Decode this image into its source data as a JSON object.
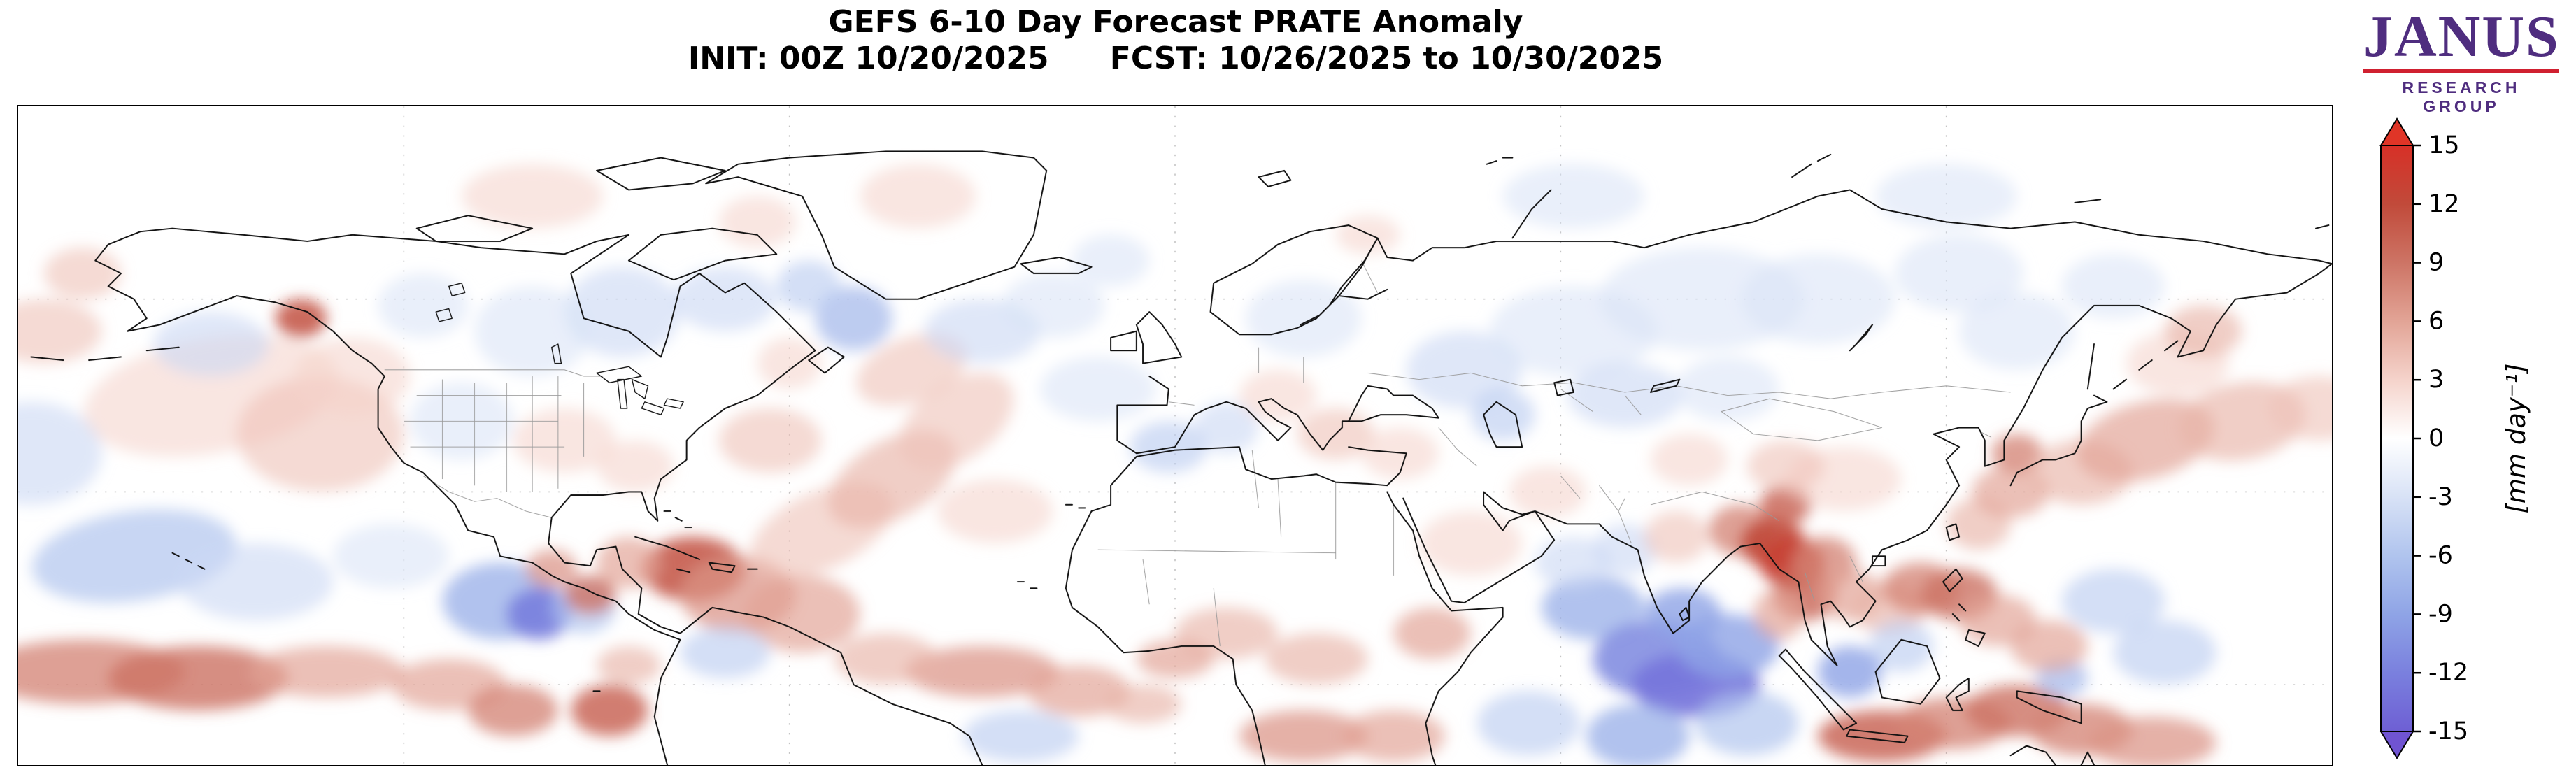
{
  "header": {
    "title_line1": "GEFS 6-10 Day Forecast PRATE Anomaly",
    "init_label": "INIT: 00Z 10/20/2025",
    "fcst_label": "FCST: 10/26/2025 to 10/30/2025"
  },
  "logo": {
    "name": "JANUS",
    "subtitle": "RESEARCH GROUP",
    "text_color": "#4f2d7f",
    "rule_color": "#d02030"
  },
  "colorbar": {
    "vmin": -15,
    "vmax": 15,
    "ticks": [
      15,
      12,
      9,
      6,
      3,
      0,
      -3,
      -6,
      -9,
      -12,
      -15
    ],
    "unit_label": "[mm day⁻¹]",
    "over_color": "#e03527",
    "under_color": "#7054d2",
    "stops": [
      {
        "v": -15,
        "c": "#6e5fd4"
      },
      {
        "v": -12,
        "c": "#7a80de"
      },
      {
        "v": -9,
        "c": "#8fa4e6"
      },
      {
        "v": -6,
        "c": "#b0c4ee"
      },
      {
        "v": -3,
        "c": "#d8e2f6"
      },
      {
        "v": 0,
        "c": "#ffffff"
      },
      {
        "v": 3,
        "c": "#f5d3cb"
      },
      {
        "v": 6,
        "c": "#e2a496"
      },
      {
        "v": 9,
        "c": "#cd7465"
      },
      {
        "v": 12,
        "c": "#c14a3a"
      },
      {
        "v": 15,
        "c": "#d73027"
      }
    ]
  },
  "map": {
    "lon_min": -180,
    "lon_max": 180,
    "lat_max": 90,
    "lat_min": -12.5,
    "grid_lons": [
      -120,
      -60,
      0,
      60,
      120
    ],
    "grid_lats": [
      60,
      30,
      0
    ],
    "blobs": [
      [
        -150,
        45,
        20,
        9,
        3,
        -10
      ],
      [
        -133,
        39,
        13,
        9,
        4
      ],
      [
        -128,
        48,
        9,
        6,
        3
      ],
      [
        -136,
        57,
        4,
        3,
        11
      ],
      [
        -150,
        53,
        9,
        5,
        -4
      ],
      [
        -176,
        55,
        9,
        5,
        4
      ],
      [
        -178,
        36,
        11,
        8,
        -4
      ],
      [
        -162,
        20,
        16,
        7,
        -6,
        -8
      ],
      [
        -143,
        16,
        12,
        6,
        -4
      ],
      [
        -122,
        20,
        9,
        5,
        -3
      ],
      [
        -105,
        13,
        9,
        6,
        -8
      ],
      [
        -99,
        11,
        5,
        4,
        -12
      ],
      [
        -92,
        12,
        5,
        4,
        -6
      ],
      [
        -170,
        2,
        16,
        5,
        8
      ],
      [
        -152,
        1,
        14,
        5,
        9
      ],
      [
        -132,
        2,
        12,
        4,
        6
      ],
      [
        -113,
        0,
        9,
        4,
        6
      ],
      [
        -103,
        -4,
        7,
        4,
        8
      ],
      [
        -88,
        -4,
        6,
        4,
        10
      ],
      [
        -85,
        3,
        5,
        3,
        5
      ],
      [
        -75,
        18,
        8,
        5,
        11
      ],
      [
        -68,
        14,
        9,
        6,
        7
      ],
      [
        -58,
        11,
        9,
        6,
        6
      ],
      [
        -85,
        19,
        5,
        4,
        6
      ],
      [
        -97,
        18,
        4,
        3,
        7
      ],
      [
        -91,
        14,
        4,
        3,
        9
      ],
      [
        -70,
        5,
        7,
        4,
        -5
      ],
      [
        -55,
        24,
        12,
        6,
        4,
        -25
      ],
      [
        -44,
        32,
        11,
        6,
        5,
        -30
      ],
      [
        -34,
        41,
        10,
        6,
        4,
        -35
      ],
      [
        -41,
        49,
        9,
        5,
        4,
        -20
      ],
      [
        -63,
        38,
        8,
        5,
        4
      ],
      [
        -30,
        55,
        9,
        5,
        -4
      ],
      [
        -19,
        59,
        8,
        5,
        -3
      ],
      [
        -50,
        57,
        6,
        5,
        -7
      ],
      [
        -57,
        62,
        5,
        4,
        -5
      ],
      [
        -70,
        60,
        8,
        5,
        -4
      ],
      [
        -86,
        58,
        9,
        7,
        -4
      ],
      [
        -100,
        55,
        9,
        7,
        -3
      ],
      [
        -117,
        59,
        7,
        5,
        -3
      ],
      [
        -95,
        38,
        8,
        5,
        3
      ],
      [
        -84,
        34,
        6,
        4,
        3
      ],
      [
        -111,
        41,
        8,
        6,
        -3
      ],
      [
        -60,
        50,
        5,
        4,
        3
      ],
      [
        -28,
        27,
        9,
        5,
        3
      ],
      [
        -30,
        2,
        12,
        4,
        7
      ],
      [
        -15,
        -1,
        8,
        4,
        6
      ],
      [
        -45,
        4,
        8,
        4,
        5
      ],
      [
        -24,
        -8,
        9,
        4,
        -5
      ],
      [
        -5,
        -3,
        6,
        3,
        5
      ],
      [
        -1,
        37,
        6,
        4,
        -5
      ],
      [
        8,
        40,
        5,
        4,
        -4
      ],
      [
        -12,
        46,
        9,
        5,
        -3
      ],
      [
        16,
        45,
        6,
        4,
        3
      ],
      [
        25,
        39,
        6,
        4,
        4
      ],
      [
        35,
        36,
        6,
        4,
        3
      ],
      [
        20,
        57,
        9,
        6,
        -3
      ],
      [
        45,
        49,
        9,
        6,
        -4
      ],
      [
        51,
        42,
        5,
        4,
        -5
      ],
      [
        62,
        55,
        13,
        7,
        -3
      ],
      [
        82,
        60,
        16,
        8,
        -3
      ],
      [
        100,
        60,
        12,
        7,
        -3
      ],
      [
        122,
        64,
        10,
        6,
        -3
      ],
      [
        70,
        45,
        9,
        5,
        -4
      ],
      [
        86,
        46,
        8,
        5,
        -3
      ],
      [
        8,
        8,
        8,
        4,
        5
      ],
      [
        0,
        4,
        6,
        3,
        6
      ],
      [
        22,
        4,
        8,
        4,
        5
      ],
      [
        40,
        8,
        6,
        4,
        6
      ],
      [
        20,
        -8,
        10,
        4,
        7
      ],
      [
        34,
        -8,
        8,
        4,
        6
      ],
      [
        55,
        -6,
        8,
        5,
        -5
      ],
      [
        46,
        22,
        8,
        5,
        3
      ],
      [
        65,
        12,
        8,
        5,
        -8
      ],
      [
        62,
        19,
        6,
        4,
        -4
      ],
      [
        75,
        4,
        10,
        6,
        -11
      ],
      [
        81,
        0,
        10,
        5,
        -13
      ],
      [
        86,
        6,
        8,
        5,
        -9
      ],
      [
        72,
        -8,
        8,
        5,
        -8
      ],
      [
        89,
        -6,
        8,
        5,
        -6
      ],
      [
        79,
        11,
        6,
        4,
        -9
      ],
      [
        70,
        21,
        5,
        4,
        -4
      ],
      [
        78,
        23,
        5,
        4,
        4
      ],
      [
        88,
        24,
        5,
        4,
        8
      ],
      [
        93,
        22,
        5,
        4,
        12
      ],
      [
        96,
        19,
        5,
        4,
        13
      ],
      [
        98,
        14,
        5,
        4,
        10
      ],
      [
        101,
        19,
        5,
        4,
        8
      ],
      [
        95,
        28,
        4,
        3,
        10
      ],
      [
        94,
        11,
        4,
        4,
        6
      ],
      [
        105,
        14,
        5,
        4,
        6
      ],
      [
        111,
        12,
        6,
        4,
        5
      ],
      [
        116,
        15,
        6,
        4,
        8
      ],
      [
        122,
        14,
        6,
        4,
        9
      ],
      [
        128,
        10,
        6,
        4,
        6
      ],
      [
        113,
        6,
        5,
        4,
        -5
      ],
      [
        105,
        2,
        5,
        4,
        -9
      ],
      [
        110,
        -8,
        10,
        4,
        10
      ],
      [
        121,
        -6,
        9,
        4,
        8
      ],
      [
        131,
        -4,
        8,
        4,
        9
      ],
      [
        141,
        -7,
        8,
        4,
        8
      ],
      [
        152,
        -9,
        10,
        4,
        7
      ],
      [
        138,
        1,
        4,
        3,
        -7
      ],
      [
        146,
        13,
        8,
        5,
        -5
      ],
      [
        154,
        5,
        8,
        5,
        -5
      ],
      [
        136,
        6,
        6,
        4,
        6
      ],
      [
        125,
        25,
        5,
        4,
        5
      ],
      [
        130,
        30,
        6,
        4,
        6
      ],
      [
        131,
        36,
        4,
        3,
        8
      ],
      [
        141,
        33,
        8,
        5,
        5
      ],
      [
        151,
        38,
        11,
        6,
        6,
        -15
      ],
      [
        166,
        41,
        10,
        6,
        5,
        -10
      ],
      [
        178,
        43,
        8,
        5,
        4
      ],
      [
        156,
        50,
        8,
        5,
        3
      ],
      [
        160,
        55,
        6,
        4,
        5
      ],
      [
        131,
        55,
        9,
        6,
        -3
      ],
      [
        146,
        62,
        8,
        5,
        -3
      ],
      [
        104,
        32,
        9,
        5,
        3
      ],
      [
        95,
        34,
        6,
        4,
        4
      ],
      [
        80,
        35,
        6,
        4,
        3
      ],
      [
        58,
        30,
        6,
        4,
        3
      ],
      [
        -100,
        76,
        11,
        5,
        3
      ],
      [
        -65,
        72,
        6,
        4,
        3
      ],
      [
        -40,
        76,
        9,
        5,
        3
      ],
      [
        62,
        76,
        11,
        5,
        -3
      ],
      [
        120,
        76,
        11,
        5,
        -3
      ],
      [
        -10,
        66,
        6,
        4,
        -3
      ],
      [
        -170,
        64,
        6,
        4,
        4
      ],
      [
        30,
        70,
        5,
        3,
        3
      ]
    ]
  }
}
